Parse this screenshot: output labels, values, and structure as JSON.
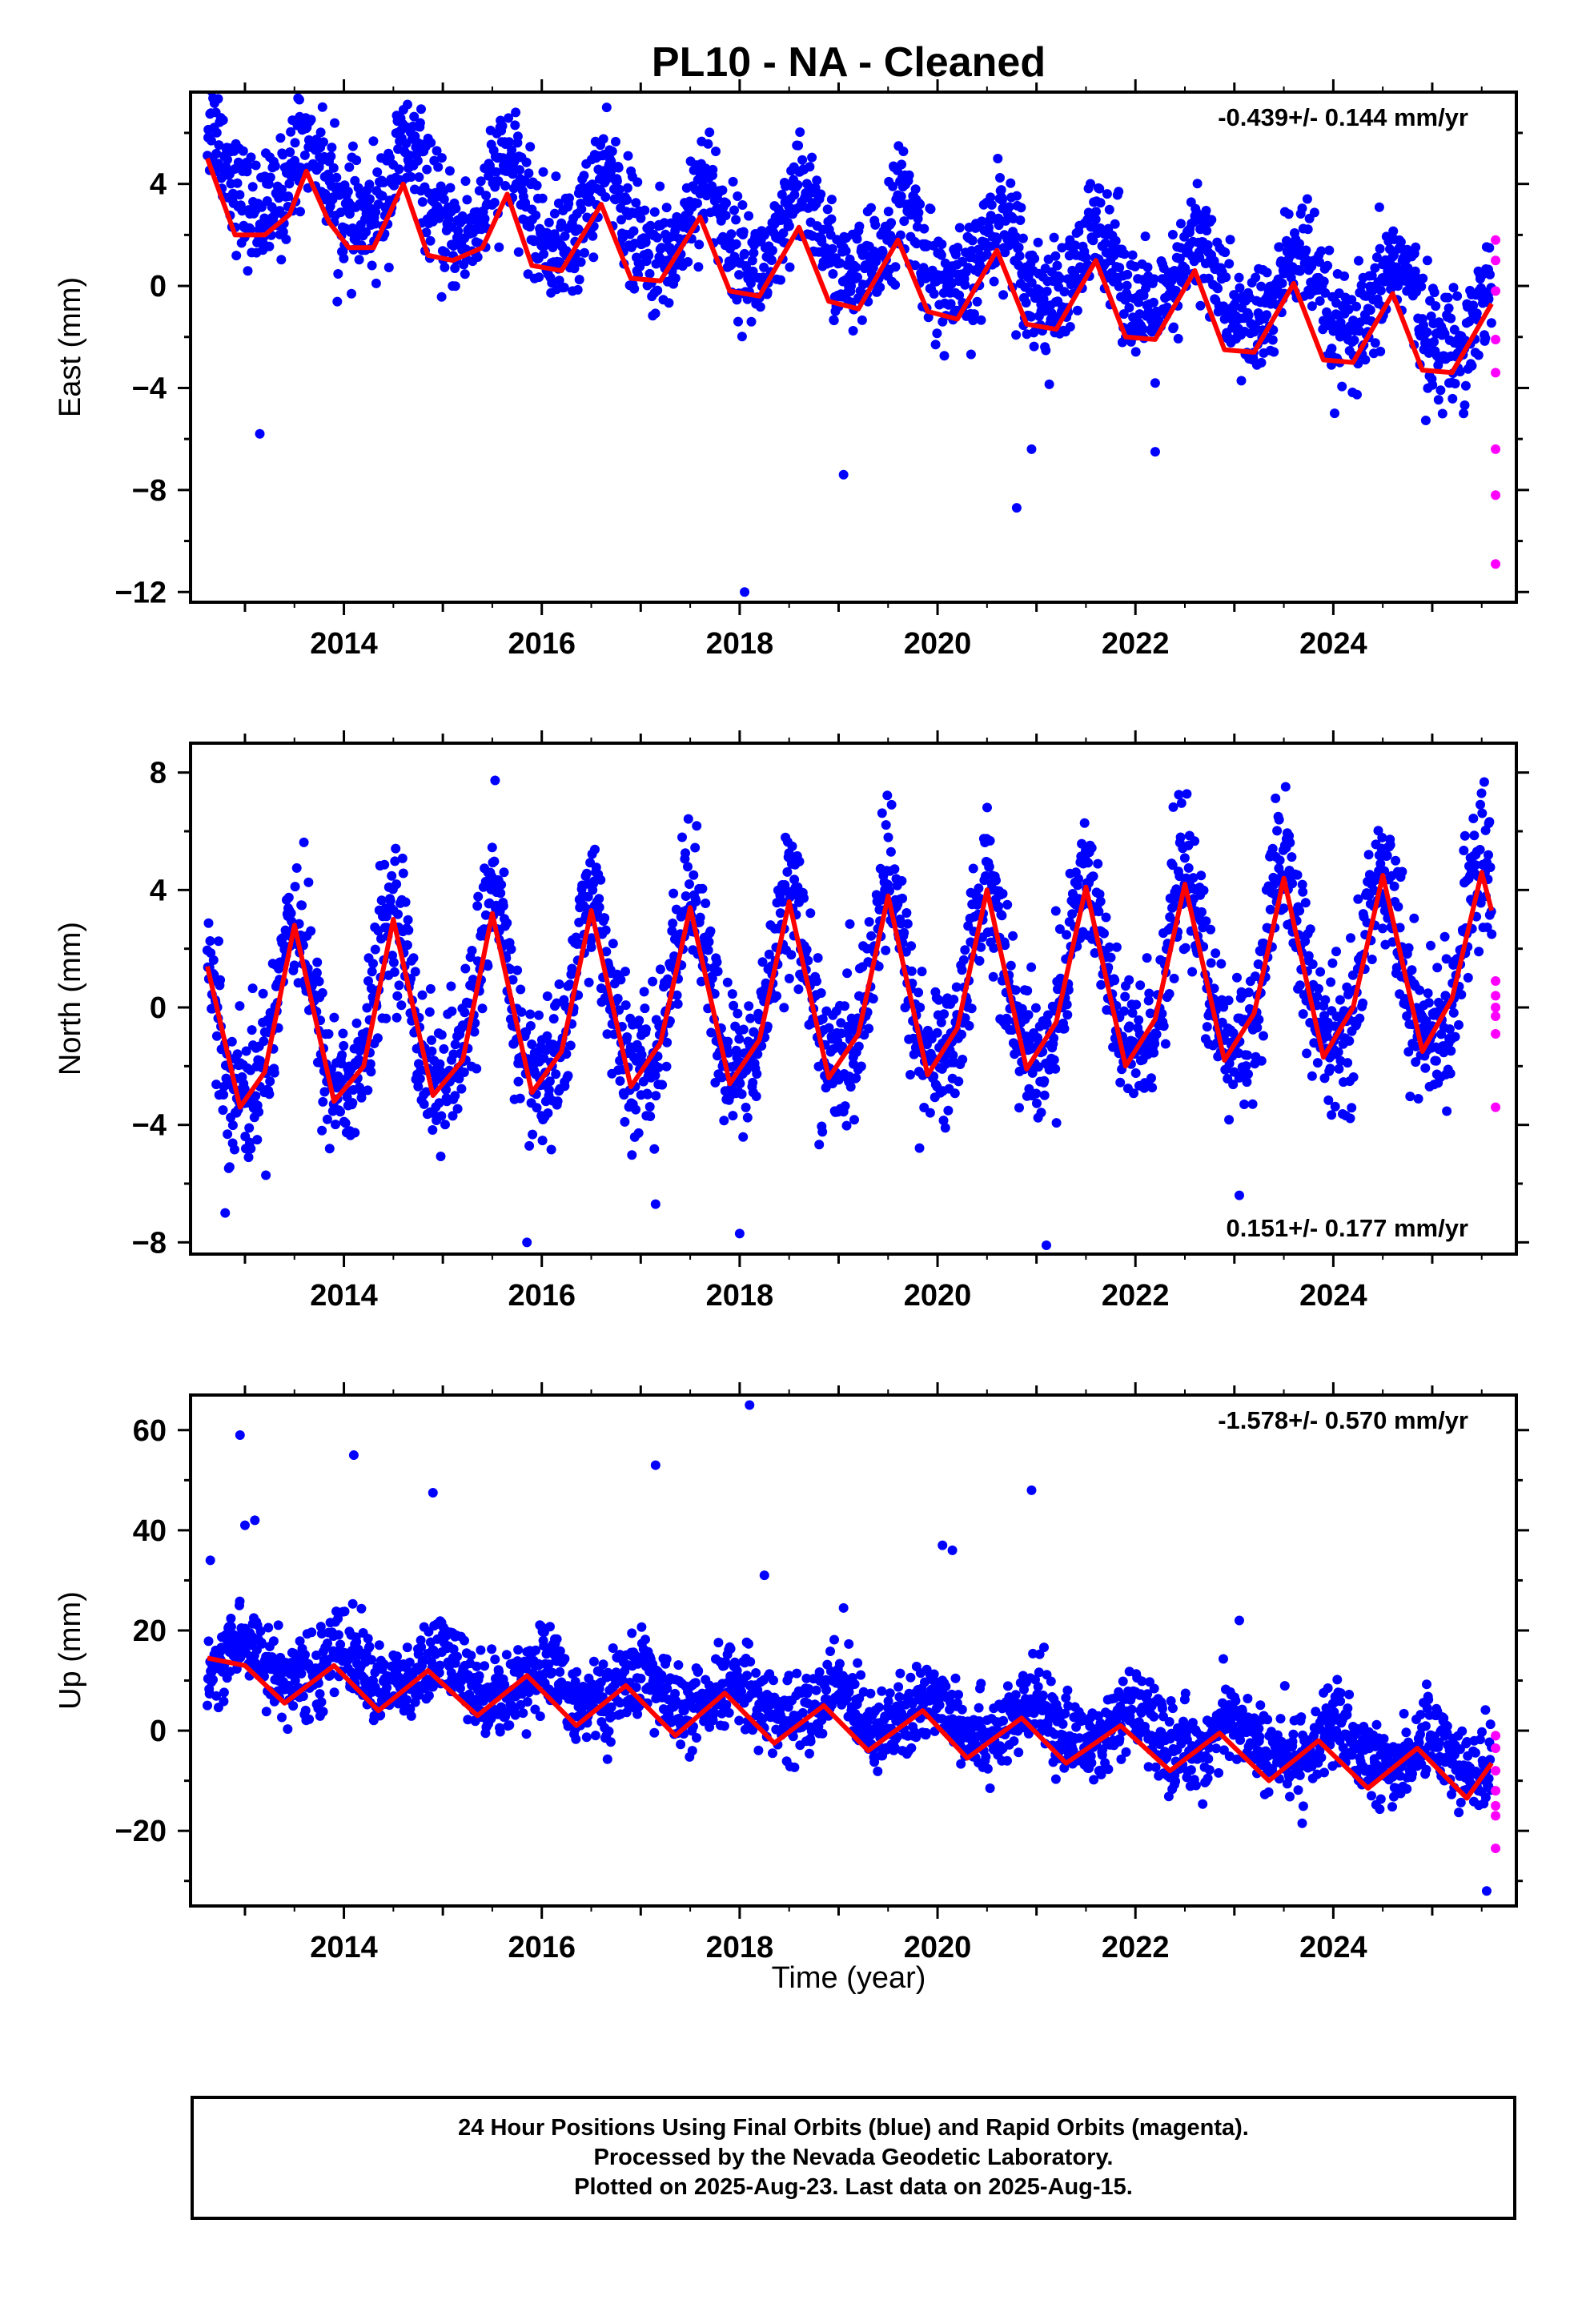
{
  "title": "PL10  - NA - Cleaned",
  "x_axis": {
    "label": "Time (year)",
    "ticks": [
      2014,
      2016,
      2018,
      2020,
      2022,
      2024
    ]
  },
  "footer": {
    "line1": "24 Hour Positions Using Final Orbits (blue) and Rapid Orbits (magenta).",
    "line2": "Processed by the Nevada Geodetic Laboratory.",
    "line3": "Plotted on 2025-Aug-23. Last data on 2025-Aug-15."
  },
  "colors": {
    "final_orbits": "#0000ff",
    "rapid_orbits": "#ff00ff",
    "model_fit": "#ff0000",
    "axes": "#000000"
  },
  "chart_data": [
    {
      "type": "scatter",
      "name": "east",
      "ylabel": "East (mm)",
      "rate_label": "-0.439+/- 0.144 mm/yr",
      "rate_position": "top-right",
      "xlim": [
        2012.45,
        2025.85
      ],
      "ylim": [
        -12.4,
        7.6
      ],
      "y_ticks": [
        -12,
        -8,
        -4,
        0,
        4
      ],
      "x_ticks": [
        2014,
        2016,
        2018,
        2020,
        2022,
        2024
      ],
      "model": {
        "start": 2012.62,
        "end": 2025.6,
        "offset": 4.4,
        "trend": -0.439,
        "annual_amp": 1.6,
        "annual_phase": 2013.65,
        "semi_amp": 0.3,
        "scatter": 1.1
      },
      "fit_line": {
        "x": [
          2012.62,
          2012.9,
          2013.2,
          2013.45,
          2013.62,
          2013.85,
          2014.05,
          2014.3,
          2014.6,
          2014.85,
          2015.1,
          2015.4,
          2015.65,
          2015.9,
          2016.2,
          2016.6,
          2016.9,
          2017.2,
          2017.6,
          2017.9,
          2018.2,
          2018.6,
          2018.9,
          2019.2,
          2019.6,
          2019.9,
          2020.2,
          2020.6,
          2020.9,
          2021.2,
          2021.6,
          2021.9,
          2022.2,
          2022.6,
          2022.9,
          2023.2,
          2023.6,
          2023.9,
          2024.2,
          2024.6,
          2024.9,
          2025.2,
          2025.6
        ],
        "y": [
          5.0,
          2.0,
          2.0,
          2.8,
          4.5,
          2.5,
          1.5,
          1.5,
          4.0,
          1.2,
          1.0,
          1.5,
          3.6,
          0.8,
          0.6,
          3.2,
          0.3,
          0.2,
          2.7,
          -0.2,
          -0.4,
          2.3,
          -0.6,
          -0.9,
          1.8,
          -1.0,
          -1.3,
          1.4,
          -1.5,
          -1.7,
          1.0,
          -2.0,
          -2.1,
          0.6,
          -2.5,
          -2.6,
          0.1,
          -2.9,
          -3.0,
          -0.3,
          -3.3,
          -3.4,
          -0.7
        ]
      },
      "rapid_points": {
        "x": [
          2025.64,
          2025.64,
          2025.64,
          2025.64,
          2025.64,
          2025.64,
          2025.64,
          2025.64
        ],
        "y": [
          1.8,
          1.0,
          -0.2,
          -2.1,
          -3.4,
          -6.4,
          -8.2,
          -10.9
        ]
      },
      "outliers": {
        "x": [
          2013.15,
          2018.05,
          2019.05,
          2020.8,
          2020.95,
          2022.2,
          2013.55
        ],
        "y": [
          -5.8,
          -12.0,
          -7.4,
          -8.7,
          -6.4,
          -6.5,
          7.3
        ]
      }
    },
    {
      "type": "scatter",
      "name": "north",
      "ylabel": "North (mm)",
      "rate_label": "0.151+/- 0.177 mm/yr",
      "rate_position": "bottom-right",
      "xlim": [
        2012.45,
        2025.85
      ],
      "ylim": [
        -8.4,
        9.0
      ],
      "y_ticks": [
        -8,
        -4,
        0,
        4,
        8
      ],
      "x_ticks": [
        2014,
        2016,
        2018,
        2020,
        2022,
        2024
      ],
      "model": {
        "start": 2012.62,
        "end": 2025.6,
        "offset": -0.5,
        "trend": 0.151,
        "annual_amp": 3.0,
        "annual_phase": 2013.5,
        "semi_amp": 0.6,
        "scatter": 1.2
      },
      "fit_line": {
        "x": [
          2012.62,
          2012.95,
          2013.2,
          2013.5,
          2013.9,
          2014.2,
          2014.5,
          2014.9,
          2015.2,
          2015.5,
          2015.9,
          2016.2,
          2016.5,
          2016.9,
          2017.2,
          2017.5,
          2017.9,
          2018.2,
          2018.5,
          2018.9,
          2019.2,
          2019.5,
          2019.9,
          2020.2,
          2020.5,
          2020.9,
          2021.2,
          2021.5,
          2021.9,
          2022.2,
          2022.5,
          2022.9,
          2023.2,
          2023.5,
          2023.9,
          2024.2,
          2024.5,
          2024.9,
          2025.2,
          2025.5,
          2025.6
        ],
        "y": [
          1.4,
          -3.4,
          -2.2,
          2.8,
          -3.2,
          -2.0,
          3.0,
          -3.0,
          -1.8,
          3.2,
          -2.9,
          -1.5,
          3.3,
          -2.7,
          -1.2,
          3.4,
          -2.6,
          -1.1,
          3.6,
          -2.4,
          -0.9,
          3.8,
          -2.3,
          -0.7,
          4.0,
          -2.1,
          -0.5,
          4.1,
          -2.0,
          -0.4,
          4.2,
          -1.8,
          -0.2,
          4.4,
          -1.7,
          0.0,
          4.5,
          -1.5,
          0.3,
          4.6,
          3.3
        ]
      },
      "rapid_points": {
        "x": [
          2025.64,
          2025.64,
          2025.64,
          2025.64,
          2025.64,
          2025.64
        ],
        "y": [
          0.9,
          0.4,
          0.0,
          -0.3,
          -0.9,
          -3.4
        ]
      },
      "outliers": {
        "x": [
          2012.8,
          2015.85,
          2017.15,
          2018.0,
          2021.1,
          2023.05
        ],
        "y": [
          -7.0,
          -8.0,
          -6.7,
          -7.7,
          -8.1,
          -6.4
        ]
      }
    },
    {
      "type": "scatter",
      "name": "up",
      "ylabel": "Up (mm)",
      "rate_label": "-1.578+/- 0.570 mm/yr",
      "rate_position": "top-right",
      "xlim": [
        2012.45,
        2025.85
      ],
      "ylim": [
        -35,
        67
      ],
      "y_ticks": [
        -20,
        0,
        20,
        40,
        60
      ],
      "x_ticks": [
        2014,
        2016,
        2018,
        2020,
        2022,
        2024
      ],
      "model": {
        "start": 2012.62,
        "end": 2025.6,
        "offset": 14.5,
        "trend": -1.578,
        "annual_amp": 3.5,
        "annual_phase": 2013.0,
        "semi_amp": 0.8,
        "scatter": 4.0
      },
      "fit_line": {
        "x": [
          2012.62,
          2013.0,
          2013.4,
          2013.9,
          2014.35,
          2014.85,
          2015.35,
          2015.85,
          2016.35,
          2016.85,
          2017.35,
          2017.85,
          2018.35,
          2018.85,
          2019.3,
          2019.85,
          2020.3,
          2020.85,
          2021.3,
          2021.85,
          2022.35,
          2022.85,
          2023.35,
          2023.85,
          2024.35,
          2024.85,
          2025.35,
          2025.6
        ],
        "y": [
          14.5,
          13.0,
          5.5,
          13.0,
          4.0,
          12.0,
          3.0,
          11.0,
          1.0,
          9.0,
          -1.0,
          7.5,
          -2.5,
          5.0,
          -4.0,
          4.0,
          -5.5,
          2.5,
          -6.5,
          1.0,
          -8.0,
          -0.5,
          -10.0,
          -2.0,
          -11.5,
          -3.5,
          -13.5,
          -6.5
        ]
      },
      "rapid_points": {
        "x": [
          2025.64,
          2025.64,
          2025.64,
          2025.64,
          2025.64,
          2025.64,
          2025.64
        ],
        "y": [
          -1.0,
          -3.5,
          -8.0,
          -12.0,
          -15.0,
          -17.0,
          -23.5
        ]
      },
      "outliers": {
        "x": [
          2012.95,
          2013.0,
          2013.1,
          2014.1,
          2014.9,
          2017.15,
          2018.1,
          2018.25,
          2020.05,
          2020.15,
          2020.95,
          2023.05,
          2019.05,
          2012.65,
          2025.55
        ],
        "y": [
          59.0,
          41.0,
          42.0,
          55.0,
          47.5,
          53.0,
          65.0,
          31.0,
          37.0,
          36.0,
          48.0,
          22.0,
          24.5,
          34.0,
          -32.0
        ]
      }
    }
  ]
}
